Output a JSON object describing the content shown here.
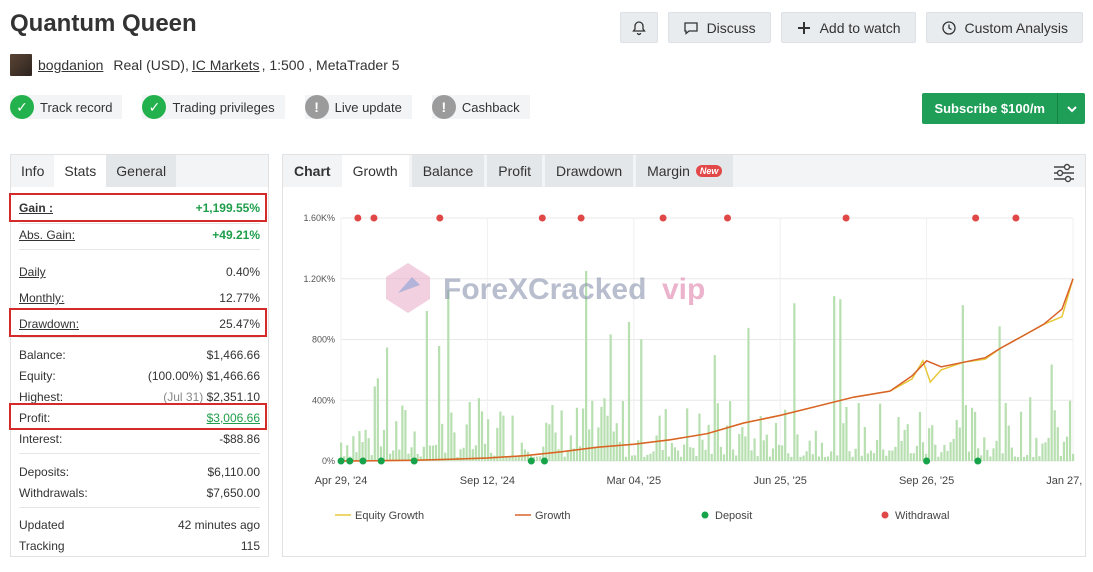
{
  "header": {
    "title": "Quantum Queen"
  },
  "actions": {
    "discuss": "Discuss",
    "watch": "Add to watch",
    "analysis": "Custom Analysis"
  },
  "meta": {
    "user": "bogdanion",
    "account": "Real (USD),",
    "broker": "IC Markets",
    "details": ", 1:500 , MetaTrader 5"
  },
  "badges": [
    {
      "label": "Track record",
      "status": "ok"
    },
    {
      "label": "Trading privileges",
      "status": "ok"
    },
    {
      "label": "Live update",
      "status": "warn"
    },
    {
      "label": "Cashback",
      "status": "warn"
    }
  ],
  "subscribe": {
    "label": "Subscribe $100/m"
  },
  "stats": {
    "tabs": [
      "Info",
      "Stats",
      "General"
    ],
    "gain": {
      "label": "Gain :",
      "value": "+1,199.55%"
    },
    "abs_gain": {
      "label": "Abs. Gain:",
      "value": "+49.21%"
    },
    "daily": {
      "label": "Daily",
      "value": "0.40%"
    },
    "monthly": {
      "label": "Monthly:",
      "value": "12.77%"
    },
    "drawdown": {
      "label": "Drawdown:",
      "value": "25.47%"
    },
    "balance": {
      "label": "Balance:",
      "value": "$1,466.66"
    },
    "equity": {
      "label": "Equity:",
      "pct": "(100.00%)",
      "value": "$1,466.66"
    },
    "highest": {
      "label": "Highest:",
      "date": "(Jul 31)",
      "value": "$2,351.10"
    },
    "profit": {
      "label": "Profit:",
      "value": "$3,006.66"
    },
    "interest": {
      "label": "Interest:",
      "value": "-$88.86"
    },
    "deposits": {
      "label": "Deposits:",
      "value": "$6,110.00"
    },
    "withdrawals": {
      "label": "Withdrawals:",
      "value": "$7,650.00"
    },
    "updated": {
      "label": "Updated",
      "value": "42 minutes ago"
    },
    "tracking": {
      "label": "Tracking",
      "value": "115"
    }
  },
  "chart_tabs": {
    "label": "Chart",
    "items": [
      "Growth",
      "Balance",
      "Profit",
      "Drawdown",
      "Margin"
    ],
    "new_badge": "New"
  },
  "watermark": "ForeXCracked",
  "watermark_suffix": "vip",
  "chart_data": {
    "type": "line",
    "y_ticks": [
      "0%",
      "400%",
      "800%",
      "1.20K%",
      "1.60K%"
    ],
    "ylim": [
      0,
      1600
    ],
    "x_ticks": [
      "Apr 29, '24",
      "Sep 12, '24",
      "Mar 04, '25",
      "Jun 25, '25",
      "Sep 26, '25",
      "Jan 27, '26"
    ],
    "legend": [
      "Equity Growth",
      "Growth",
      "Deposit",
      "Withdrawal"
    ],
    "colors": {
      "equity": "#e8c83a",
      "growth": "#d8622a",
      "deposit": "#16a34a",
      "withdrawal": "#e04848",
      "bars": "#b7dfb0"
    },
    "growth": [
      [
        0,
        0
      ],
      [
        0.05,
        2
      ],
      [
        0.1,
        5
      ],
      [
        0.15,
        12
      ],
      [
        0.2,
        20
      ],
      [
        0.25,
        35
      ],
      [
        0.3,
        60
      ],
      [
        0.35,
        90
      ],
      [
        0.4,
        110
      ],
      [
        0.45,
        140
      ],
      [
        0.5,
        180
      ],
      [
        0.55,
        250
      ],
      [
        0.6,
        300
      ],
      [
        0.65,
        360
      ],
      [
        0.7,
        420
      ],
      [
        0.75,
        460
      ],
      [
        0.78,
        560
      ],
      [
        0.8,
        660
      ],
      [
        0.82,
        620
      ],
      [
        0.85,
        650
      ],
      [
        0.88,
        680
      ],
      [
        0.9,
        740
      ],
      [
        0.93,
        820
      ],
      [
        0.96,
        900
      ],
      [
        0.985,
        1000
      ],
      [
        1,
        1200
      ]
    ],
    "equity": [
      [
        0,
        0
      ],
      [
        0.05,
        2
      ],
      [
        0.1,
        5
      ],
      [
        0.15,
        12
      ],
      [
        0.2,
        20
      ],
      [
        0.25,
        35
      ],
      [
        0.3,
        60
      ],
      [
        0.35,
        90
      ],
      [
        0.4,
        110
      ],
      [
        0.45,
        140
      ],
      [
        0.5,
        180
      ],
      [
        0.55,
        250
      ],
      [
        0.6,
        300
      ],
      [
        0.65,
        360
      ],
      [
        0.7,
        420
      ],
      [
        0.75,
        460
      ],
      [
        0.78,
        540
      ],
      [
        0.795,
        660
      ],
      [
        0.805,
        520
      ],
      [
        0.82,
        600
      ],
      [
        0.85,
        650
      ],
      [
        0.88,
        670
      ],
      [
        0.9,
        740
      ],
      [
        0.93,
        820
      ],
      [
        0.96,
        900
      ],
      [
        0.985,
        950
      ],
      [
        1,
        1200
      ]
    ],
    "deposits_x": [
      0.0,
      0.012,
      0.03,
      0.055,
      0.1,
      0.26,
      0.278,
      0.8,
      0.87
    ],
    "withdrawals_x": [
      0.023,
      0.045,
      0.135,
      0.275,
      0.328,
      0.44,
      0.528,
      0.69,
      0.867,
      0.922
    ]
  }
}
